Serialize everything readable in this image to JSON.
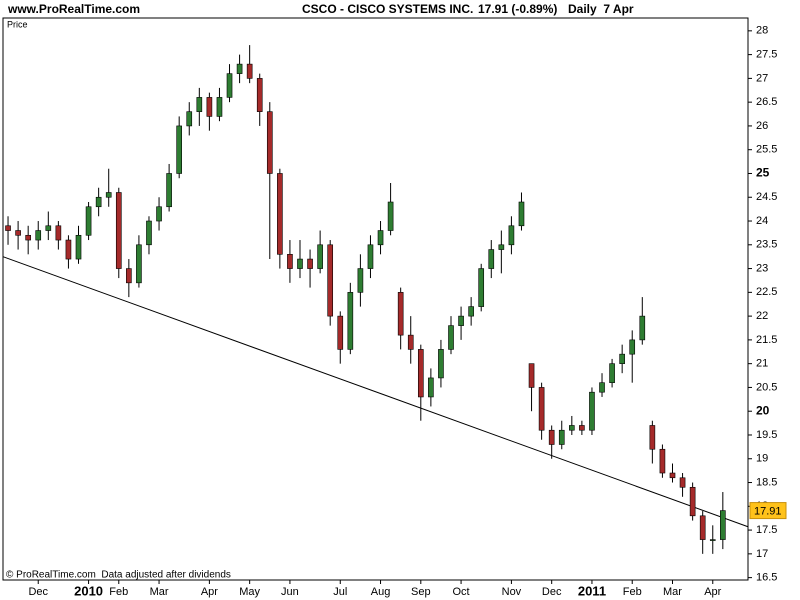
{
  "chart_data": {
    "type": "candlestick",
    "site": "www.ProRealTime.com",
    "title": "CSCO - CISCO SYSTEMS INC.",
    "price_change": "17.91 (-0.89%)",
    "period": "Daily  7 Apr",
    "axis_label": "Price",
    "footer": "© ProRealTime.com  Data adjusted after dividends",
    "up_color": "#2e7d32",
    "down_color": "#a52a2a",
    "grid": false,
    "categories": [
      null,
      null,
      null,
      "Dec",
      null,
      null,
      null,
      null,
      "2010",
      null,
      null,
      "Feb",
      null,
      null,
      null,
      "Mar",
      null,
      null,
      null,
      null,
      "Apr",
      null,
      null,
      null,
      "May",
      null,
      null,
      null,
      "Jun",
      null,
      null,
      null,
      null,
      "Jul",
      null,
      null,
      null,
      "Aug",
      null,
      null,
      null,
      "Sep",
      null,
      null,
      null,
      "Oct",
      null,
      null,
      null,
      null,
      "Nov",
      null,
      null,
      null,
      "Dec",
      null,
      null,
      null,
      "2011",
      null,
      null,
      null,
      "Feb",
      null,
      null,
      null,
      "Mar",
      null,
      null,
      null,
      "Apr",
      null,
      null,
      null
    ],
    "ohlc": [
      [
        23.9,
        24.1,
        23.5,
        23.8
      ],
      [
        23.8,
        24.0,
        23.4,
        23.7
      ],
      [
        23.7,
        23.9,
        23.3,
        23.6
      ],
      [
        23.6,
        24.0,
        23.4,
        23.8
      ],
      [
        23.8,
        24.2,
        23.6,
        23.9
      ],
      [
        23.9,
        24.0,
        23.4,
        23.6
      ],
      [
        23.6,
        23.7,
        23.0,
        23.2
      ],
      [
        23.2,
        23.9,
        23.1,
        23.7
      ],
      [
        23.7,
        24.4,
        23.6,
        24.3
      ],
      [
        24.3,
        24.7,
        24.1,
        24.5
      ],
      [
        24.5,
        25.1,
        24.3,
        24.6
      ],
      [
        24.6,
        24.7,
        22.8,
        23.0
      ],
      [
        23.0,
        23.2,
        22.4,
        22.7
      ],
      [
        22.7,
        23.7,
        22.6,
        23.5
      ],
      [
        23.5,
        24.1,
        23.3,
        24.0
      ],
      [
        24.0,
        24.5,
        23.8,
        24.3
      ],
      [
        24.3,
        25.2,
        24.2,
        25.0
      ],
      [
        25.0,
        26.2,
        24.9,
        26.0
      ],
      [
        26.0,
        26.5,
        25.8,
        26.3
      ],
      [
        26.3,
        26.8,
        26.0,
        26.6
      ],
      [
        26.6,
        26.7,
        25.9,
        26.2
      ],
      [
        26.2,
        26.8,
        26.1,
        26.6
      ],
      [
        26.6,
        27.3,
        26.5,
        27.1
      ],
      [
        27.1,
        27.5,
        26.9,
        27.3
      ],
      [
        27.3,
        27.7,
        26.9,
        27.0
      ],
      [
        27.0,
        27.1,
        26.0,
        26.3
      ],
      [
        26.3,
        26.5,
        23.2,
        25.0
      ],
      [
        25.0,
        25.1,
        23.0,
        23.3
      ],
      [
        23.3,
        23.6,
        22.7,
        23.0
      ],
      [
        23.0,
        23.6,
        22.8,
        23.2
      ],
      [
        23.2,
        23.4,
        22.6,
        23.0
      ],
      [
        23.0,
        23.8,
        22.9,
        23.5
      ],
      [
        23.5,
        23.6,
        21.8,
        22.0
      ],
      [
        22.0,
        22.1,
        21.0,
        21.3
      ],
      [
        21.3,
        22.7,
        21.2,
        22.5
      ],
      [
        22.5,
        23.3,
        22.2,
        23.0
      ],
      [
        23.0,
        23.7,
        22.8,
        23.5
      ],
      [
        23.5,
        24.0,
        23.3,
        23.8
      ],
      [
        23.8,
        24.8,
        23.7,
        24.4
      ],
      [
        22.5,
        22.6,
        21.3,
        21.6
      ],
      [
        21.6,
        22.0,
        21.0,
        21.3
      ],
      [
        21.3,
        21.4,
        19.8,
        20.3
      ],
      [
        20.3,
        20.9,
        20.1,
        20.7
      ],
      [
        20.7,
        21.5,
        20.5,
        21.3
      ],
      [
        21.3,
        22.0,
        21.2,
        21.8
      ],
      [
        21.8,
        22.2,
        21.5,
        22.0
      ],
      [
        22.0,
        22.4,
        21.8,
        22.2
      ],
      [
        22.2,
        23.1,
        22.1,
        23.0
      ],
      [
        23.0,
        23.6,
        22.8,
        23.4
      ],
      [
        23.4,
        23.8,
        22.9,
        23.5
      ],
      [
        23.5,
        24.1,
        23.3,
        23.9
      ],
      [
        23.9,
        24.6,
        23.8,
        24.4
      ],
      [
        21.0,
        21.0,
        20.0,
        20.5
      ],
      [
        20.5,
        20.6,
        19.4,
        19.6
      ],
      [
        19.6,
        19.7,
        19.0,
        19.3
      ],
      [
        19.3,
        19.8,
        19.2,
        19.6
      ],
      [
        19.6,
        19.9,
        19.5,
        19.7
      ],
      [
        19.7,
        19.8,
        19.5,
        19.6
      ],
      [
        19.6,
        20.5,
        19.5,
        20.4
      ],
      [
        20.4,
        20.8,
        20.3,
        20.6
      ],
      [
        20.6,
        21.1,
        20.5,
        21.0
      ],
      [
        21.0,
        21.4,
        20.8,
        21.2
      ],
      [
        21.2,
        21.7,
        20.6,
        21.5
      ],
      [
        21.5,
        22.4,
        21.4,
        22.0
      ],
      [
        19.7,
        19.8,
        18.9,
        19.2
      ],
      [
        19.2,
        19.3,
        18.6,
        18.7
      ],
      [
        18.7,
        18.9,
        18.5,
        18.6
      ],
      [
        18.6,
        18.7,
        18.2,
        18.4
      ],
      [
        18.4,
        18.5,
        17.7,
        17.8
      ],
      [
        17.8,
        17.9,
        17.0,
        17.3
      ],
      [
        17.3,
        17.6,
        17.0,
        17.3
      ],
      [
        17.3,
        18.3,
        17.1,
        17.91
      ],
      null,
      null
    ],
    "trend_line": {
      "start": 23.25,
      "end": 17.57
    },
    "ylim": [
      16.45,
      28.27
    ],
    "yticks": [
      16.5,
      17,
      17.5,
      18,
      18.5,
      19,
      19.5,
      20,
      20.5,
      21,
      21.5,
      22,
      22.5,
      23,
      23.5,
      24,
      24.5,
      25,
      25.5,
      26,
      26.5,
      27,
      27.5,
      28
    ]
  }
}
